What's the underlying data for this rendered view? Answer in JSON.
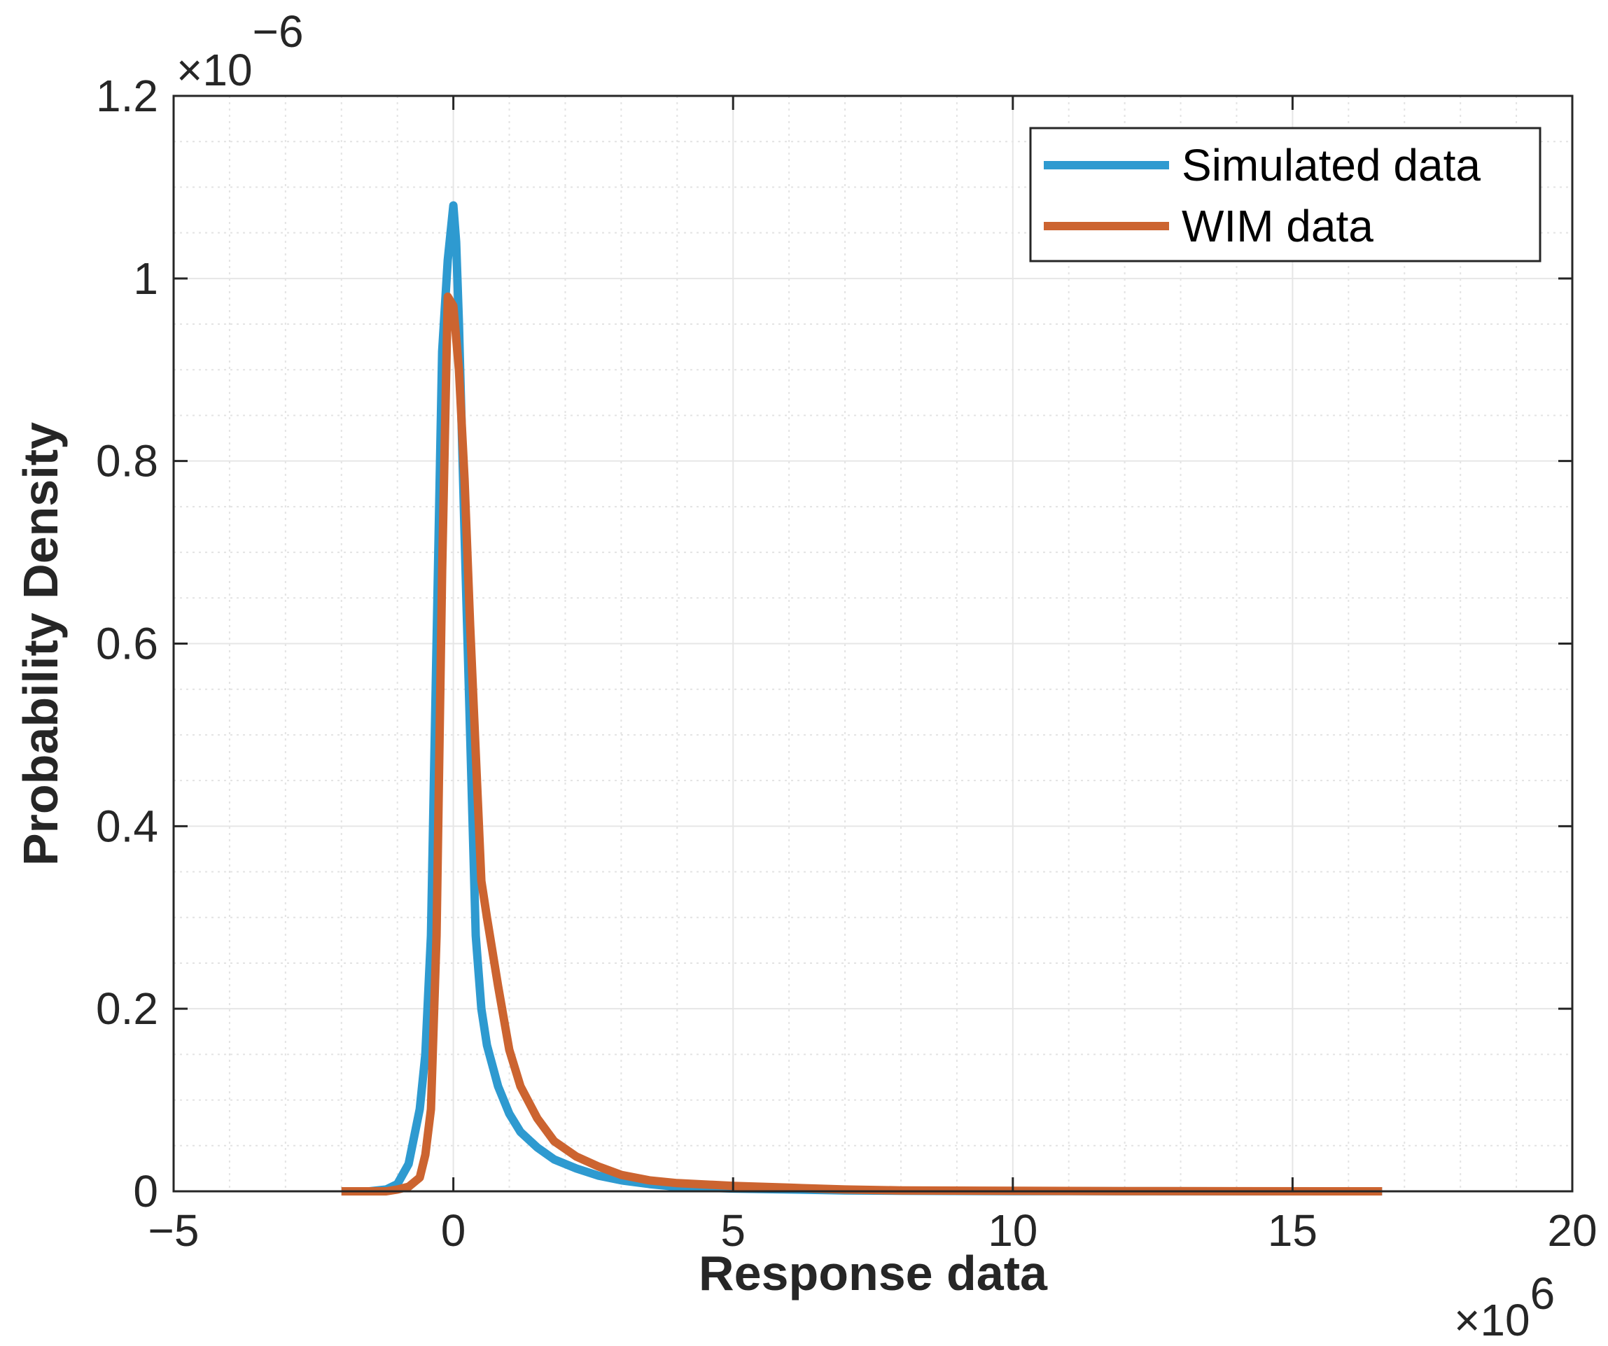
{
  "chart_data": {
    "type": "line",
    "title": "",
    "xlabel": "Response data",
    "ylabel": "Probability Density",
    "xlim": [
      -5,
      20
    ],
    "ylim": [
      0,
      1.2
    ],
    "x_exponent_label": "×10",
    "x_exponent_power": "6",
    "y_exponent_label": "×10",
    "y_exponent_power": "−6",
    "x_ticks": [
      -5,
      0,
      5,
      10,
      15,
      20
    ],
    "x_tick_labels": [
      "−5",
      "0",
      "5",
      "10",
      "15",
      "20"
    ],
    "y_ticks": [
      0,
      0.2,
      0.4,
      0.6,
      0.8,
      1,
      1.2
    ],
    "y_tick_labels": [
      "0",
      "0.2",
      "0.4",
      "0.6",
      "0.8",
      "1",
      "1.2"
    ],
    "grid": true,
    "minor_grid": true,
    "legend": {
      "location": "top-right"
    },
    "series": [
      {
        "name": "Simulated data",
        "color": "#2e9ad0",
        "x": [
          -2.0,
          -1.5,
          -1.2,
          -1.0,
          -0.8,
          -0.6,
          -0.5,
          -0.4,
          -0.3,
          -0.2,
          -0.1,
          0.0,
          0.05,
          0.1,
          0.2,
          0.3,
          0.4,
          0.5,
          0.6,
          0.8,
          1.0,
          1.2,
          1.5,
          1.8,
          2.2,
          2.6,
          3.0,
          3.5,
          4.0,
          5.0,
          6.0,
          7.0,
          8.0,
          10.0,
          12.0,
          14.0,
          16.6
        ],
        "y": [
          0.0,
          0.0,
          0.002,
          0.008,
          0.03,
          0.09,
          0.15,
          0.28,
          0.6,
          0.92,
          1.02,
          1.08,
          1.04,
          0.95,
          0.72,
          0.5,
          0.28,
          0.2,
          0.16,
          0.115,
          0.085,
          0.065,
          0.048,
          0.035,
          0.025,
          0.017,
          0.012,
          0.008,
          0.005,
          0.003,
          0.002,
          0.001,
          0.0005,
          0.0002,
          0.0001,
          0.0,
          0.0
        ]
      },
      {
        "name": "WIM data",
        "color": "#cc6430",
        "x": [
          -2.0,
          -1.5,
          -1.2,
          -1.0,
          -0.8,
          -0.6,
          -0.5,
          -0.4,
          -0.3,
          -0.2,
          -0.1,
          0.0,
          0.1,
          0.2,
          0.3,
          0.4,
          0.5,
          0.6,
          0.8,
          1.0,
          1.2,
          1.5,
          1.8,
          2.2,
          2.6,
          3.0,
          3.5,
          4.0,
          5.0,
          6.0,
          7.0,
          8.0,
          10.0,
          12.0,
          14.0,
          16.6
        ],
        "y": [
          0.0,
          0.0,
          0.0,
          0.002,
          0.005,
          0.015,
          0.04,
          0.09,
          0.28,
          0.68,
          0.98,
          0.97,
          0.9,
          0.78,
          0.62,
          0.48,
          0.34,
          0.3,
          0.225,
          0.155,
          0.115,
          0.08,
          0.055,
          0.038,
          0.027,
          0.018,
          0.012,
          0.009,
          0.006,
          0.004,
          0.002,
          0.001,
          0.0005,
          0.0002,
          0.0001,
          0.0
        ]
      }
    ]
  }
}
